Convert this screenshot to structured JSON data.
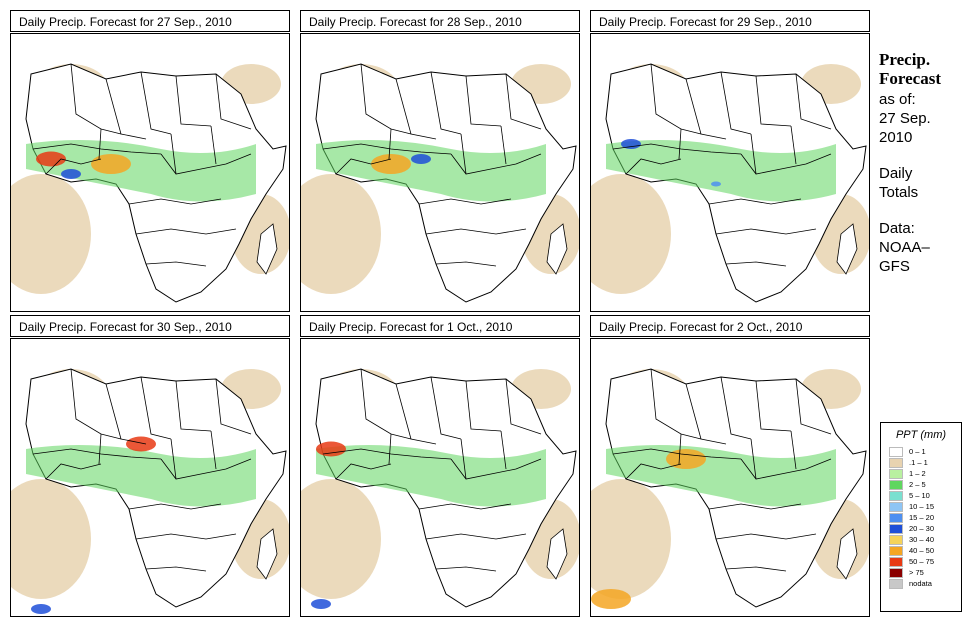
{
  "panels": [
    {
      "title": "Daily Precip. Forecast for  27 Sep., 2010",
      "rain": [
        [
          40,
          125,
          3
        ],
        [
          100,
          130,
          4
        ],
        [
          60,
          140,
          2
        ]
      ]
    },
    {
      "title": "Daily Precip. Forecast for  28 Sep., 2010",
      "rain": [
        [
          90,
          130,
          4
        ],
        [
          120,
          125,
          2
        ]
      ]
    },
    {
      "title": "Daily Precip. Forecast for  29 Sep., 2010",
      "rain": [
        [
          40,
          110,
          2
        ],
        [
          125,
          150,
          1
        ]
      ]
    },
    {
      "title": "Daily Precip. Forecast for  30 Sep., 2010",
      "rain": [
        [
          130,
          105,
          3
        ],
        [
          30,
          270,
          2
        ]
      ]
    },
    {
      "title": "Daily Precip. Forecast for  1 Oct., 2010",
      "rain": [
        [
          30,
          110,
          3
        ],
        [
          20,
          265,
          2
        ]
      ]
    },
    {
      "title": "Daily Precip. Forecast for  2 Oct., 2010",
      "rain": [
        [
          95,
          120,
          4
        ],
        [
          20,
          260,
          4
        ]
      ]
    }
  ],
  "sidebar": {
    "heading1": "Precip.",
    "heading2": "Forecast",
    "line1": "as of:",
    "line2": "27 Sep.",
    "line3": "2010",
    "line4": "Daily",
    "line5": "Totals",
    "line6": "Data:",
    "line7": "NOAA–",
    "line8": "GFS"
  },
  "legend": {
    "title": "PPT (mm)",
    "items": [
      {
        "label": "0 – 1",
        "color": "#ffffff"
      },
      {
        "label": ".1 – 1",
        "color": "#e8d3b0"
      },
      {
        "label": "1 – 2",
        "color": "#b9f0a0"
      },
      {
        "label": "2 – 5",
        "color": "#5fd65f"
      },
      {
        "label": "5 – 10",
        "color": "#7ae0d0"
      },
      {
        "label": "10 – 15",
        "color": "#8ec5f5"
      },
      {
        "label": "15 – 20",
        "color": "#4d8ff0"
      },
      {
        "label": "20 – 30",
        "color": "#1e4fd8"
      },
      {
        "label": "30 – 40",
        "color": "#f5d35a"
      },
      {
        "label": "40 – 50",
        "color": "#f5a623"
      },
      {
        "label": "50 – 75",
        "color": "#e83a14"
      },
      {
        "label": "> 75",
        "color": "#8b0000"
      },
      {
        "label": "nodata",
        "color": "#c8c8c8"
      }
    ]
  }
}
